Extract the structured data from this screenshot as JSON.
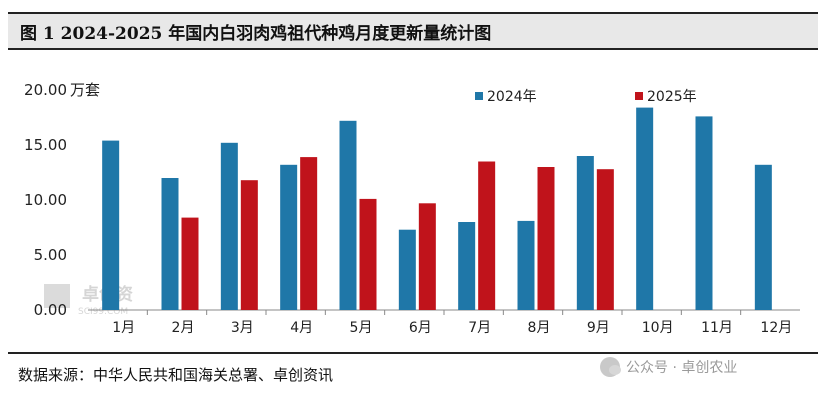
{
  "header": {
    "title": "图 1 2024-2025 年国内白羽肉鸡祖代种鸡月度更新量统计图"
  },
  "footer": {
    "source": "数据来源：中华人民共和国海关总署、卓创资讯",
    "watermark": "公众号 · 卓创农业",
    "logo_cn": "卓创资",
    "logo_en": "SCI99.COM"
  },
  "chart_data": {
    "type": "bar",
    "title": "",
    "ylabel": "",
    "unit": "万套",
    "categories": [
      "1月",
      "2月",
      "3月",
      "4月",
      "5月",
      "6月",
      "7月",
      "8月",
      "9月",
      "10月",
      "11月",
      "12月"
    ],
    "yticks": [
      "20.00",
      "15.00",
      "10.00",
      "5.00",
      "0.00"
    ],
    "ylim": [
      0,
      20
    ],
    "grid": false,
    "legend_position": "top",
    "series": [
      {
        "name": "2024年",
        "color": "#1f77a8",
        "values": [
          15.4,
          12.0,
          15.2,
          13.2,
          17.2,
          7.3,
          8.0,
          8.1,
          14.0,
          18.4,
          17.6,
          13.2
        ]
      },
      {
        "name": "2025年",
        "color": "#c0131b",
        "values": [
          null,
          8.4,
          11.8,
          13.9,
          10.1,
          9.7,
          13.5,
          13.0,
          12.8,
          null,
          null,
          null
        ]
      }
    ]
  }
}
